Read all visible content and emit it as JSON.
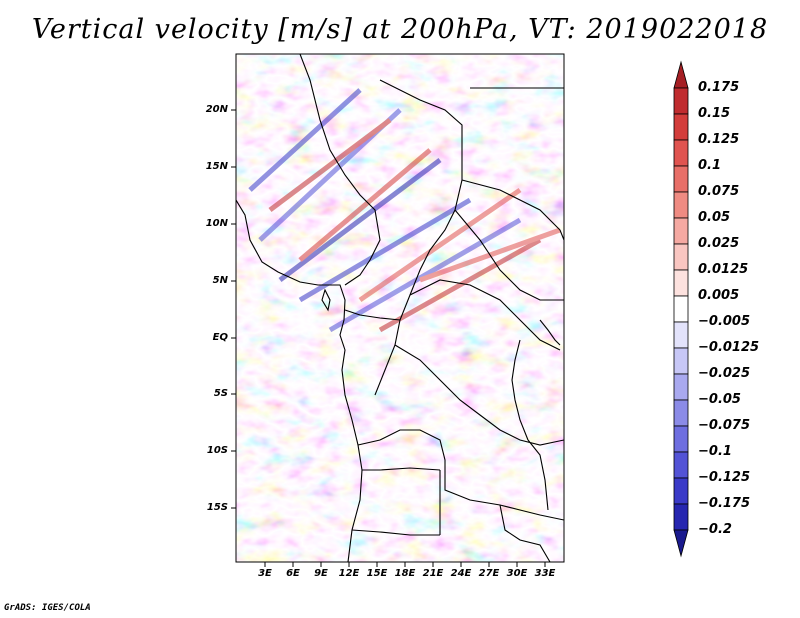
{
  "title": "Vertical velocity [m/s] at 200hPa, VT: 2019022018",
  "credit": "GrADS: IGES/COLA",
  "map": {
    "variable": "Vertical velocity",
    "units": "m/s",
    "level": "200hPa",
    "valid_time": "2019022018",
    "lat_labels": [
      "20N",
      "15N",
      "10N",
      "5N",
      "EQ",
      "5S",
      "10S",
      "15S"
    ],
    "lon_labels": [
      "3E",
      "6E",
      "9E",
      "12E",
      "15E",
      "18E",
      "21E",
      "24E",
      "27E",
      "30E",
      "33E"
    ]
  },
  "colorbar": {
    "labels": [
      "0.175",
      "0.15",
      "0.125",
      "0.1",
      "0.075",
      "0.05",
      "0.025",
      "0.0125",
      "0.005",
      "−0.005",
      "−0.0125",
      "−0.025",
      "−0.05",
      "−0.075",
      "−0.1",
      "−0.125",
      "−0.175",
      "−0.2"
    ],
    "colors": [
      "#a51f24",
      "#c02c2f",
      "#d33d3b",
      "#e05450",
      "#e86f68",
      "#ef8b82",
      "#f5a9a2",
      "#f9c6c1",
      "#fde2df",
      "#ffffff",
      "#e3e3fb",
      "#c7c7f6",
      "#a9a9ef",
      "#8b8be7",
      "#6e6ee0",
      "#5353d6",
      "#3a3ac8",
      "#2626b0",
      "#1a1a8e"
    ]
  }
}
